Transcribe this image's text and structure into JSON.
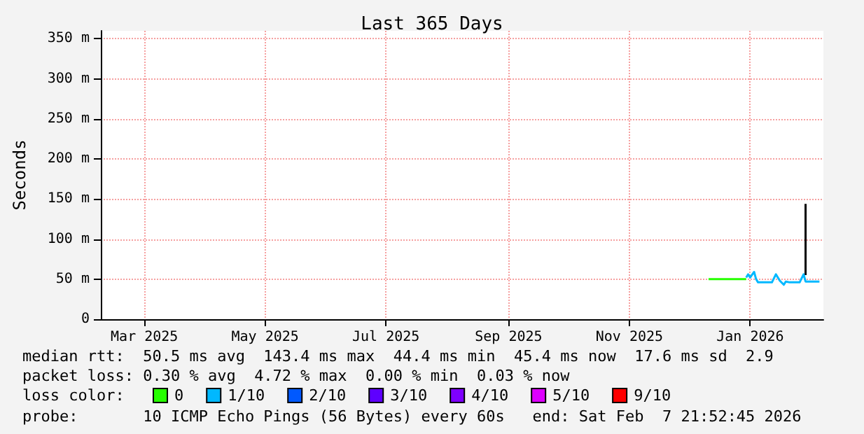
{
  "chart_data": {
    "type": "line",
    "title": "Last 365 Days",
    "ylabel": "Seconds",
    "legend_title": "loss color:",
    "xlim": [
      "2025-02-07",
      "2026-02-07"
    ],
    "xticks": [
      {
        "value": "2025-03-01",
        "label": "Mar 2025"
      },
      {
        "value": "2025-05-01",
        "label": "May 2025"
      },
      {
        "value": "2025-07-01",
        "label": "Jul 2025"
      },
      {
        "value": "2025-09-01",
        "label": "Sep 2025"
      },
      {
        "value": "2025-11-01",
        "label": "Nov 2025"
      },
      {
        "value": "2026-01-01",
        "label": "Jan 2026"
      }
    ],
    "ylim": [
      0,
      360
    ],
    "yticks": [
      0,
      {
        "value": 50,
        "label": "50 m"
      },
      {
        "value": 100,
        "label": "100 m"
      },
      {
        "value": 150,
        "label": "150 m"
      },
      {
        "value": 200,
        "label": "200 m"
      },
      {
        "value": 250,
        "label": "250 m"
      },
      {
        "value": 300,
        "label": "300 m"
      },
      {
        "value": 350,
        "label": "350 m"
      }
    ],
    "grid": true,
    "legend": "bottom",
    "marker": "none",
    "line_style": "solid",
    "series": [
      {
        "color": "#000000",
        "x": [
          "2026-01-29",
          "2026-01-29"
        ],
        "values": [
          55,
          144
        ]
      },
      {
        "name": "0",
        "color": "#26ff00",
        "x": [
          "2025-12-11",
          "2025-12-20",
          "2025-12-30"
        ],
        "values": [
          50,
          50,
          50
        ]
      },
      {
        "name": "1/10",
        "color": "#00b8ff",
        "x": [
          "2025-12-30",
          "2025-12-31",
          "2026-01-01",
          "2026-01-03",
          "2026-01-04",
          "2026-01-05",
          "2026-01-12",
          "2026-01-14",
          "2026-01-16",
          "2026-01-18",
          "2026-01-19",
          "2026-01-21",
          "2026-01-26",
          "2026-01-28",
          "2026-01-29",
          "2026-01-31",
          "2026-02-05"
        ],
        "values": [
          52,
          56,
          52,
          59,
          50,
          46,
          46,
          56,
          48,
          43,
          47,
          46,
          46,
          56,
          47,
          47,
          47
        ]
      },
      {
        "name": "2/10",
        "color": "#0059ff"
      },
      {
        "name": "3/10",
        "color": "#5e00ff"
      },
      {
        "name": "4/10",
        "color": "#7e00ff"
      },
      {
        "name": "5/10",
        "color": "#dd00ff"
      },
      {
        "name": "9/10",
        "color": "#ff0000"
      }
    ],
    "annotations": [
      "median rtt:  50.5 ms avg  143.4 ms max  44.4 ms min  45.4 ms now  17.6 ms sd  2.9",
      "packet loss: 0.30 % avg  4.72 % max  0.00 % min  0.03 % now",
      "probe:       10 ICMP Echo Pings (56 Bytes) every 60s   end: Sat Feb  7 21:52:45 2026"
    ]
  }
}
